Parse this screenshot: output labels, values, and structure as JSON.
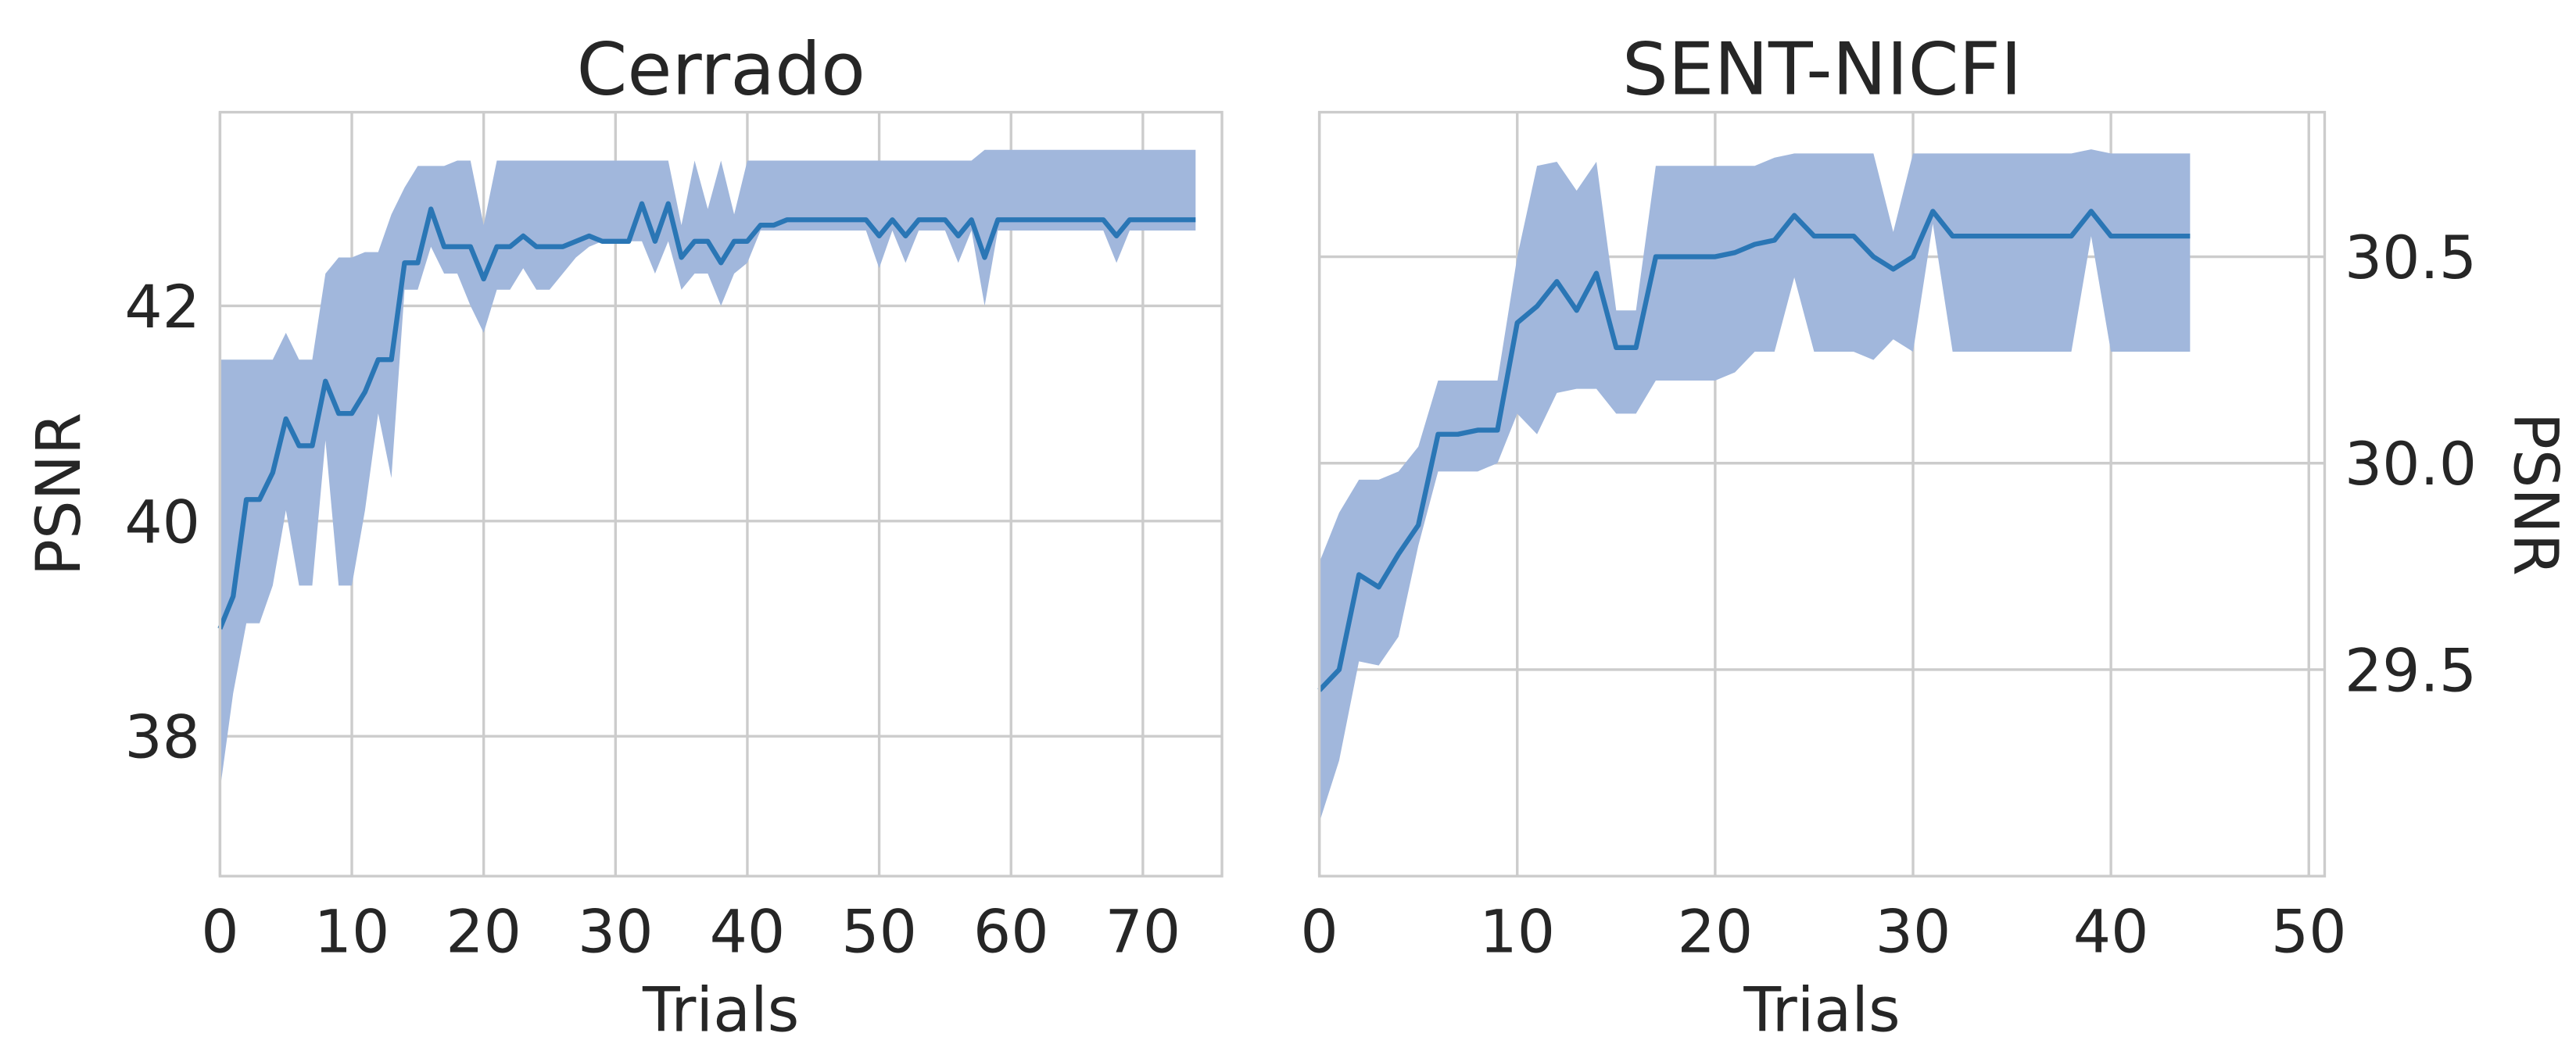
{
  "chart_data": [
    {
      "type": "line",
      "title": "Cerrado",
      "xlabel": "Trials",
      "ylabel": "PSNR",
      "yaxis_side": "left",
      "grid": true,
      "color": "#2a76b5",
      "band_color": "#a1b7dc",
      "xlim": [
        0,
        76
      ],
      "ylim": [
        36.7,
        43.8
      ],
      "xticks": [
        0,
        10,
        20,
        30,
        40,
        50,
        60,
        70
      ],
      "yticks": [
        38,
        40,
        42
      ],
      "x": [
        0,
        1,
        2,
        3,
        4,
        5,
        6,
        7,
        8,
        9,
        10,
        11,
        12,
        13,
        14,
        15,
        16,
        17,
        18,
        19,
        20,
        21,
        22,
        23,
        24,
        25,
        26,
        27,
        28,
        29,
        30,
        31,
        32,
        33,
        34,
        35,
        36,
        37,
        38,
        39,
        40,
        41,
        42,
        43,
        44,
        45,
        46,
        47,
        48,
        49,
        50,
        51,
        52,
        53,
        54,
        55,
        56,
        57,
        58,
        59,
        60,
        61,
        62,
        63,
        64,
        65,
        66,
        67,
        68,
        69,
        70,
        71,
        72,
        73,
        74
      ],
      "values": [
        39.0,
        39.3,
        40.2,
        40.2,
        40.45,
        40.95,
        40.7,
        40.7,
        41.3,
        41.0,
        41.0,
        41.2,
        41.5,
        41.5,
        42.4,
        42.4,
        42.9,
        42.55,
        42.55,
        42.55,
        42.25,
        42.55,
        42.55,
        42.65,
        42.55,
        42.55,
        42.55,
        42.6,
        42.65,
        42.6,
        42.6,
        42.6,
        42.95,
        42.6,
        42.95,
        42.45,
        42.6,
        42.6,
        42.4,
        42.6,
        42.6,
        42.75,
        42.75,
        42.8,
        42.8,
        42.8,
        42.8,
        42.8,
        42.8,
        42.8,
        42.65,
        42.8,
        42.65,
        42.8,
        42.8,
        42.8,
        42.65,
        42.8,
        42.45,
        42.8,
        42.8,
        42.8,
        42.8,
        42.8,
        42.8,
        42.8,
        42.8,
        42.8,
        42.65,
        42.8,
        42.8,
        42.8,
        42.8,
        42.8,
        42.8
      ],
      "band_upper": [
        41.5,
        41.5,
        41.5,
        41.5,
        41.5,
        41.75,
        41.5,
        41.5,
        42.3,
        42.45,
        42.45,
        42.5,
        42.5,
        42.85,
        43.1,
        43.3,
        43.3,
        43.3,
        43.35,
        43.35,
        42.75,
        43.35,
        43.35,
        43.35,
        43.35,
        43.35,
        43.35,
        43.35,
        43.35,
        43.35,
        43.35,
        43.35,
        43.35,
        43.35,
        43.35,
        42.75,
        43.35,
        42.9,
        43.35,
        42.85,
        43.35,
        43.35,
        43.35,
        43.35,
        43.35,
        43.35,
        43.35,
        43.35,
        43.35,
        43.35,
        43.35,
        43.35,
        43.35,
        43.35,
        43.35,
        43.35,
        43.35,
        43.35,
        43.45,
        43.45,
        43.45,
        43.45,
        43.45,
        43.45,
        43.45,
        43.45,
        43.45,
        43.45,
        43.45,
        43.45,
        43.45,
        43.45,
        43.45,
        43.45,
        43.45
      ],
      "band_lower": [
        37.5,
        38.4,
        39.05,
        39.05,
        39.4,
        40.1,
        39.4,
        39.4,
        40.75,
        39.4,
        39.4,
        40.1,
        41.0,
        40.4,
        42.15,
        42.15,
        42.55,
        42.3,
        42.3,
        42.0,
        41.75,
        42.15,
        42.15,
        42.35,
        42.15,
        42.15,
        42.3,
        42.45,
        42.55,
        42.6,
        42.6,
        42.6,
        42.6,
        42.3,
        42.6,
        42.15,
        42.3,
        42.3,
        42.0,
        42.3,
        42.4,
        42.7,
        42.7,
        42.7,
        42.7,
        42.7,
        42.7,
        42.7,
        42.7,
        42.7,
        42.35,
        42.7,
        42.4,
        42.7,
        42.7,
        42.7,
        42.4,
        42.7,
        42.0,
        42.7,
        42.7,
        42.7,
        42.7,
        42.7,
        42.7,
        42.7,
        42.7,
        42.7,
        42.4,
        42.7,
        42.7,
        42.7,
        42.7,
        42.7,
        42.7
      ]
    },
    {
      "type": "line",
      "title": "SENT-NICFI",
      "xlabel": "Trials",
      "ylabel": "PSNR",
      "yaxis_side": "right",
      "grid": true,
      "color": "#2a76b5",
      "band_color": "#a1b7dc",
      "xlim": [
        0,
        50.8
      ],
      "ylim": [
        29.0,
        30.85
      ],
      "xticks": [
        0,
        10,
        20,
        30,
        40,
        50
      ],
      "yticks": [
        29.5,
        {
          "value": 30,
          "label": "30.0"
        },
        30.5
      ],
      "x": [
        0,
        1,
        2,
        3,
        4,
        5,
        6,
        7,
        8,
        9,
        10,
        11,
        12,
        13,
        14,
        15,
        16,
        17,
        18,
        19,
        20,
        21,
        22,
        23,
        24,
        25,
        26,
        27,
        28,
        29,
        30,
        31,
        32,
        33,
        34,
        35,
        36,
        37,
        38,
        39,
        40,
        41,
        42,
        43,
        44
      ],
      "values": [
        29.45,
        29.5,
        29.73,
        29.7,
        29.78,
        29.85,
        30.07,
        30.07,
        30.08,
        30.08,
        30.34,
        30.38,
        30.44,
        30.37,
        30.46,
        30.28,
        30.28,
        30.5,
        30.5,
        30.5,
        30.5,
        30.51,
        30.53,
        30.54,
        30.6,
        30.55,
        30.55,
        30.55,
        30.5,
        30.47,
        30.5,
        30.61,
        30.55,
        30.55,
        30.55,
        30.55,
        30.55,
        30.55,
        30.55,
        30.61,
        30.55,
        30.55,
        30.55,
        30.55,
        30.55
      ],
      "band_upper": [
        29.76,
        29.88,
        29.96,
        29.96,
        29.98,
        30.04,
        30.2,
        30.2,
        30.2,
        30.2,
        30.5,
        30.72,
        30.73,
        30.66,
        30.73,
        30.37,
        30.37,
        30.72,
        30.72,
        30.72,
        30.72,
        30.72,
        30.72,
        30.74,
        30.75,
        30.75,
        30.75,
        30.75,
        30.75,
        30.56,
        30.75,
        30.75,
        30.75,
        30.75,
        30.75,
        30.75,
        30.75,
        30.75,
        30.75,
        30.76,
        30.75,
        30.75,
        30.75,
        30.75,
        30.75
      ],
      "band_lower": [
        29.13,
        29.28,
        29.52,
        29.51,
        29.58,
        29.8,
        29.98,
        29.98,
        29.98,
        30.0,
        30.12,
        30.07,
        30.17,
        30.18,
        30.18,
        30.12,
        30.12,
        30.2,
        30.2,
        30.2,
        30.2,
        30.22,
        30.27,
        30.27,
        30.45,
        30.27,
        30.27,
        30.27,
        30.25,
        30.3,
        30.27,
        30.58,
        30.27,
        30.27,
        30.27,
        30.27,
        30.27,
        30.27,
        30.27,
        30.55,
        30.27,
        30.27,
        30.27,
        30.27,
        30.27
      ]
    }
  ]
}
